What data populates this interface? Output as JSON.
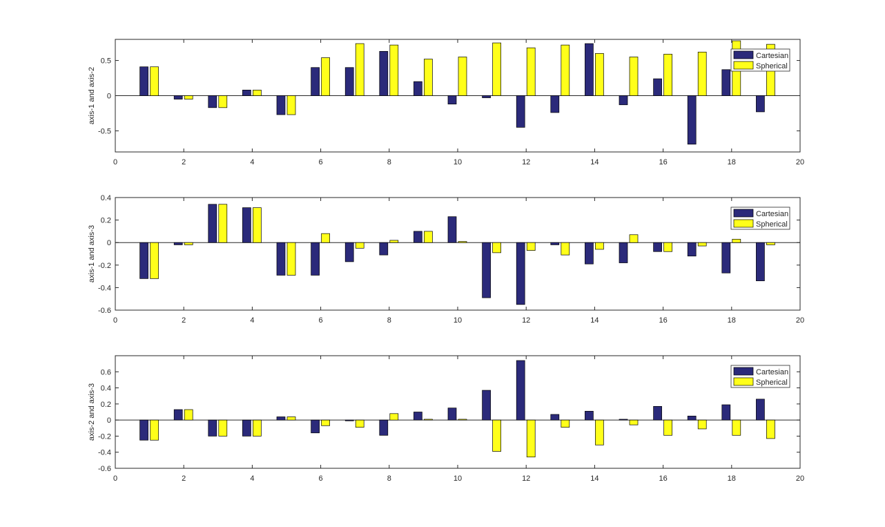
{
  "colors": {
    "cartesian": "#2b2a7a",
    "spherical": "#ffff1a",
    "axis": "#262626",
    "background": "#ffffff"
  },
  "chart_data": [
    {
      "type": "bar",
      "ylabel": "axis-1 and axis-2",
      "xlim": [
        0,
        20
      ],
      "ylim": [
        -0.8,
        0.8
      ],
      "xticks": [
        "0",
        "2",
        "4",
        "6",
        "8",
        "10",
        "12",
        "14",
        "16",
        "18",
        "20"
      ],
      "yticks": [
        {
          "value": -0.5,
          "label": "-0.5"
        },
        {
          "value": 0,
          "label": "0"
        },
        {
          "value": 0.5,
          "label": "0.5"
        }
      ],
      "legend": {
        "position": "top-right",
        "entries": [
          "Cartesian",
          "Spherical"
        ]
      },
      "x": [
        1,
        2,
        3,
        4,
        5,
        6,
        7,
        8,
        9,
        10,
        11,
        12,
        13,
        14,
        15,
        16,
        17,
        18,
        19
      ],
      "series": [
        {
          "name": "Cartesian",
          "values": [
            0.41,
            -0.05,
            -0.17,
            0.08,
            -0.27,
            0.4,
            0.4,
            0.63,
            0.2,
            -0.12,
            -0.03,
            -0.45,
            -0.24,
            0.74,
            -0.13,
            0.24,
            -0.69,
            0.37,
            -0.23
          ]
        },
        {
          "name": "Spherical",
          "values": [
            0.41,
            -0.05,
            -0.17,
            0.08,
            -0.27,
            0.54,
            0.74,
            0.72,
            0.52,
            0.55,
            0.75,
            0.68,
            0.72,
            0.6,
            0.55,
            0.59,
            0.62,
            0.78,
            0.73
          ]
        }
      ]
    },
    {
      "type": "bar",
      "ylabel": "axis-1 and axis-3",
      "xlim": [
        0,
        20
      ],
      "ylim": [
        -0.6,
        0.4
      ],
      "xticks": [
        "0",
        "2",
        "4",
        "6",
        "8",
        "10",
        "12",
        "14",
        "16",
        "18",
        "20"
      ],
      "yticks": [
        {
          "value": -0.6,
          "label": "-0.6"
        },
        {
          "value": -0.4,
          "label": "-0.4"
        },
        {
          "value": -0.2,
          "label": "-0.2"
        },
        {
          "value": 0,
          "label": "0"
        },
        {
          "value": 0.2,
          "label": "0.2"
        },
        {
          "value": 0.4,
          "label": "0.4"
        }
      ],
      "legend": {
        "position": "top-right",
        "entries": [
          "Cartesian",
          "Spherical"
        ]
      },
      "x": [
        1,
        2,
        3,
        4,
        5,
        6,
        7,
        8,
        9,
        10,
        11,
        12,
        13,
        14,
        15,
        16,
        17,
        18,
        19
      ],
      "series": [
        {
          "name": "Cartesian",
          "values": [
            -0.32,
            -0.02,
            0.34,
            0.31,
            -0.29,
            -0.29,
            -0.17,
            -0.11,
            0.1,
            0.23,
            -0.49,
            -0.55,
            -0.02,
            -0.19,
            -0.18,
            -0.08,
            -0.12,
            -0.27,
            -0.34
          ]
        },
        {
          "name": "Spherical",
          "values": [
            -0.32,
            -0.02,
            0.34,
            0.31,
            -0.29,
            0.08,
            -0.05,
            0.02,
            0.1,
            0.01,
            -0.09,
            -0.07,
            -0.11,
            -0.06,
            0.07,
            -0.08,
            -0.03,
            0.03,
            -0.02
          ]
        }
      ]
    },
    {
      "type": "bar",
      "ylabel": "axis-2 and axis-3",
      "xlim": [
        0,
        20
      ],
      "ylim": [
        -0.6,
        0.8
      ],
      "xticks": [
        "0",
        "2",
        "4",
        "6",
        "8",
        "10",
        "12",
        "14",
        "16",
        "18",
        "20"
      ],
      "yticks": [
        {
          "value": -0.6,
          "label": "-0.6"
        },
        {
          "value": -0.4,
          "label": "-0.4"
        },
        {
          "value": -0.2,
          "label": "-0.2"
        },
        {
          "value": 0,
          "label": "0"
        },
        {
          "value": 0.2,
          "label": "0.2"
        },
        {
          "value": 0.4,
          "label": "0.4"
        },
        {
          "value": 0.6,
          "label": "0.6"
        }
      ],
      "legend": {
        "position": "top-right",
        "entries": [
          "Cartesian",
          "Spherical"
        ]
      },
      "x": [
        1,
        2,
        3,
        4,
        5,
        6,
        7,
        8,
        9,
        10,
        11,
        12,
        13,
        14,
        15,
        16,
        17,
        18,
        19
      ],
      "series": [
        {
          "name": "Cartesian",
          "values": [
            -0.25,
            0.13,
            -0.2,
            -0.2,
            0.04,
            -0.16,
            -0.01,
            -0.19,
            0.1,
            0.15,
            0.37,
            0.74,
            0.07,
            0.11,
            0.01,
            0.17,
            0.05,
            0.19,
            0.26
          ]
        },
        {
          "name": "Spherical",
          "values": [
            -0.25,
            0.13,
            -0.2,
            -0.2,
            0.04,
            -0.07,
            -0.09,
            0.08,
            0.01,
            0.01,
            -0.39,
            -0.46,
            -0.09,
            -0.31,
            -0.06,
            -0.19,
            -0.11,
            -0.19,
            -0.23
          ]
        }
      ]
    }
  ]
}
